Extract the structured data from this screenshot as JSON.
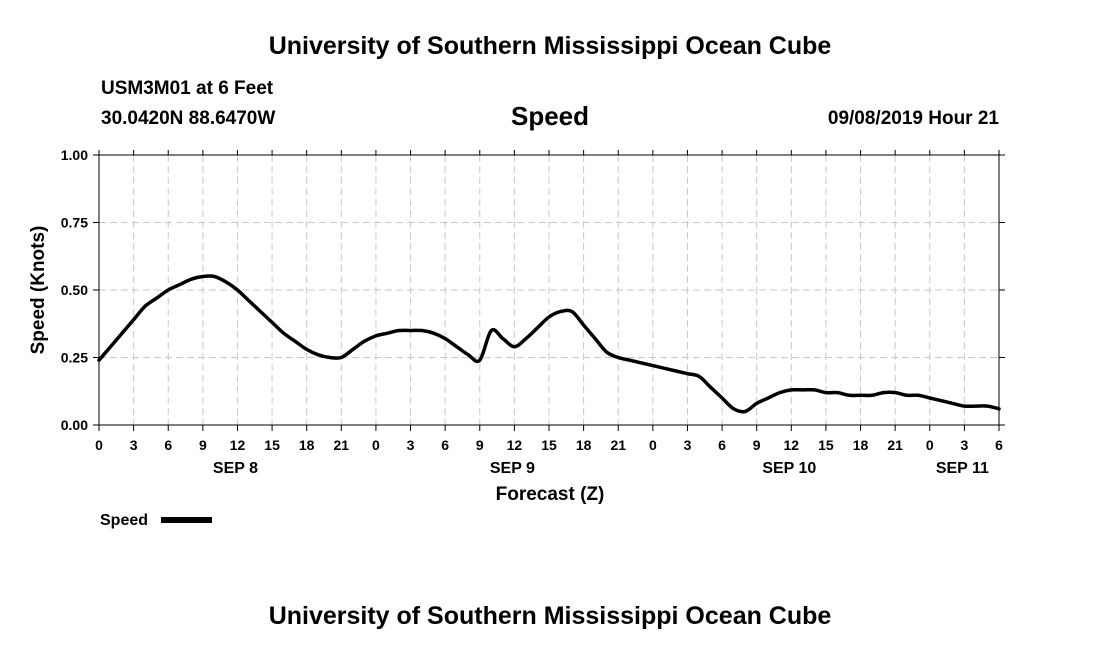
{
  "header": {
    "title": "University of Southern Mississippi Ocean Cube",
    "station": "USM3M01 at 6 Feet",
    "location": "30.0420N 88.6470W",
    "parameter": "Speed",
    "datetime": "09/08/2019 Hour 21"
  },
  "footer": {
    "title": "University of Southern Mississippi Ocean Cube"
  },
  "chart_data": {
    "type": "line",
    "title": "Speed",
    "xlabel": "Forecast (Z)",
    "ylabel": "Speed (Knots)",
    "ylim": [
      0,
      1
    ],
    "xlim": [
      0,
      78
    ],
    "x_unit": "hours since SEP 8 00Z",
    "grid": true,
    "y_ticks": [
      {
        "value": 0,
        "label": "0.00"
      },
      {
        "value": 0.25,
        "label": "0.25"
      },
      {
        "value": 0.5,
        "label": "0.50"
      },
      {
        "value": 0.75,
        "label": "0.75"
      },
      {
        "value": 1,
        "label": "1.00"
      }
    ],
    "x_ticks": [
      {
        "value": 0,
        "label": "0"
      },
      {
        "value": 3,
        "label": "3"
      },
      {
        "value": 6,
        "label": "6"
      },
      {
        "value": 9,
        "label": "9"
      },
      {
        "value": 12,
        "label": "12"
      },
      {
        "value": 15,
        "label": "15"
      },
      {
        "value": 18,
        "label": "18"
      },
      {
        "value": 21,
        "label": "21"
      },
      {
        "value": 24,
        "label": "0"
      },
      {
        "value": 27,
        "label": "3"
      },
      {
        "value": 30,
        "label": "6"
      },
      {
        "value": 33,
        "label": "9"
      },
      {
        "value": 36,
        "label": "12"
      },
      {
        "value": 39,
        "label": "15"
      },
      {
        "value": 42,
        "label": "18"
      },
      {
        "value": 45,
        "label": "21"
      },
      {
        "value": 48,
        "label": "0"
      },
      {
        "value": 51,
        "label": "3"
      },
      {
        "value": 54,
        "label": "6"
      },
      {
        "value": 57,
        "label": "9"
      },
      {
        "value": 60,
        "label": "12"
      },
      {
        "value": 63,
        "label": "15"
      },
      {
        "value": 66,
        "label": "18"
      },
      {
        "value": 69,
        "label": "21"
      },
      {
        "value": 72,
        "label": "0"
      },
      {
        "value": 75,
        "label": "3"
      },
      {
        "value": 78,
        "label": "6"
      }
    ],
    "date_labels": [
      {
        "value": 12,
        "label": "SEP 8"
      },
      {
        "value": 36,
        "label": "SEP 9"
      },
      {
        "value": 60,
        "label": "SEP 10"
      },
      {
        "value": 75,
        "label": "SEP 11"
      }
    ],
    "legend": {
      "label": "Speed",
      "placement": "bottom-left"
    },
    "series": [
      {
        "name": "Speed",
        "color": "#000000",
        "x": [
          0,
          1,
          2,
          3,
          4,
          5,
          6,
          7,
          8,
          9,
          10,
          11,
          12,
          13,
          14,
          15,
          16,
          17,
          18,
          19,
          20,
          21,
          22,
          23,
          24,
          25,
          26,
          27,
          28,
          29,
          30,
          31,
          32,
          33,
          34,
          35,
          36,
          37,
          38,
          39,
          40,
          41,
          42,
          43,
          44,
          45,
          46,
          47,
          48,
          49,
          50,
          51,
          52,
          53,
          54,
          55,
          56,
          57,
          58,
          59,
          60,
          61,
          62,
          63,
          64,
          65,
          66,
          67,
          68,
          69,
          70,
          71,
          72,
          73,
          74,
          75,
          76,
          77,
          78
        ],
        "values": [
          0.24,
          0.29,
          0.34,
          0.39,
          0.44,
          0.47,
          0.5,
          0.52,
          0.54,
          0.55,
          0.55,
          0.53,
          0.5,
          0.46,
          0.42,
          0.38,
          0.34,
          0.31,
          0.28,
          0.26,
          0.25,
          0.25,
          0.28,
          0.31,
          0.33,
          0.34,
          0.35,
          0.35,
          0.35,
          0.34,
          0.32,
          0.29,
          0.26,
          0.24,
          0.35,
          0.32,
          0.29,
          0.32,
          0.36,
          0.4,
          0.42,
          0.42,
          0.37,
          0.32,
          0.27,
          0.25,
          0.24,
          0.23,
          0.22,
          0.21,
          0.2,
          0.19,
          0.18,
          0.14,
          0.1,
          0.06,
          0.05,
          0.08,
          0.1,
          0.12,
          0.13,
          0.13,
          0.13,
          0.12,
          0.12,
          0.11,
          0.11,
          0.11,
          0.12,
          0.12,
          0.11,
          0.11,
          0.1,
          0.09,
          0.08,
          0.07,
          0.07,
          0.07,
          0.06
        ]
      }
    ]
  }
}
